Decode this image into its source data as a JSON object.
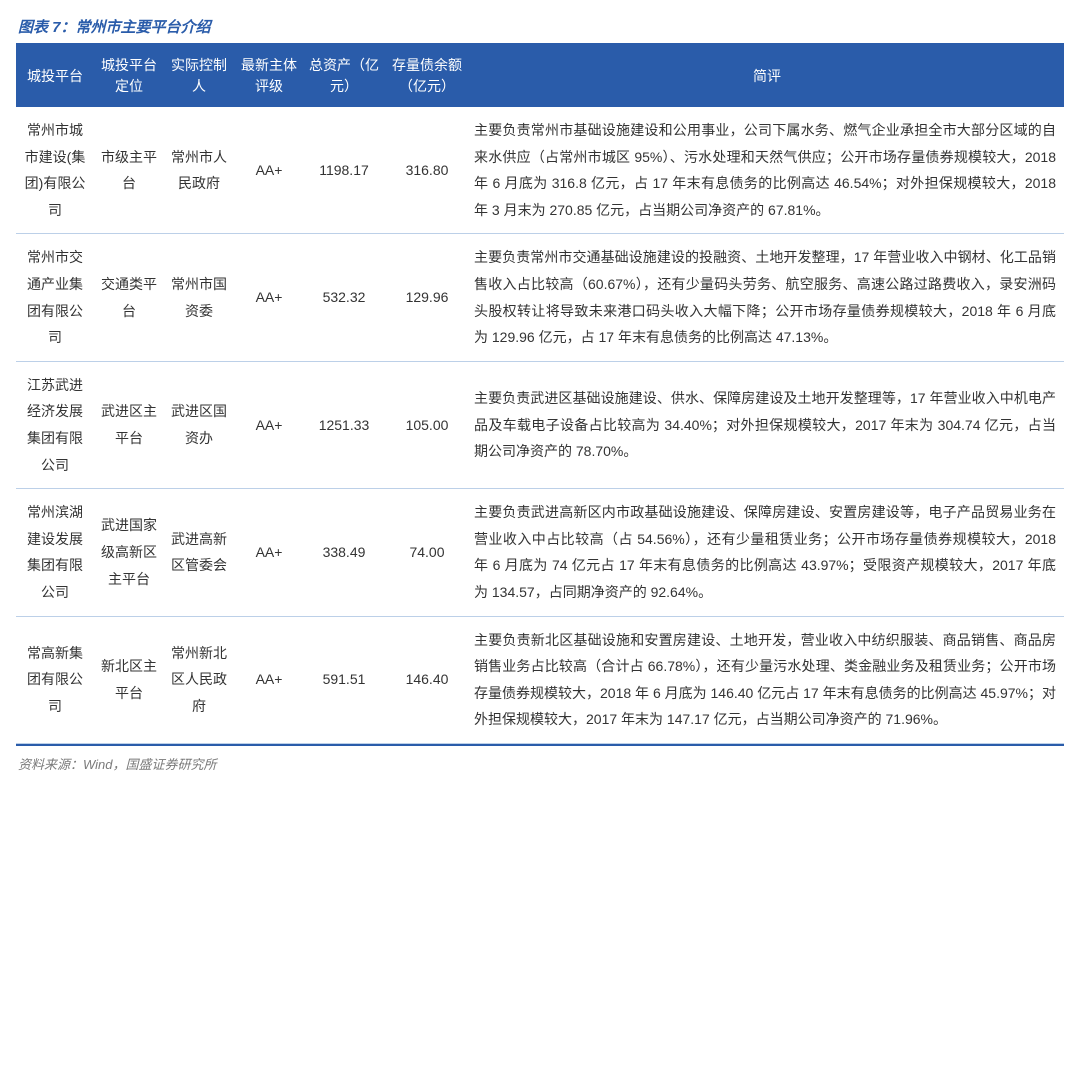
{
  "title_prefix": "图表 7：",
  "title_text": "常州市主要平台介绍",
  "source_label": "资料来源：",
  "source_text": "Wind，国盛证券研究所",
  "colors": {
    "header_bg": "#2a5caa",
    "header_text": "#ffffff",
    "row_border": "#bcd0e8",
    "title_color": "#2a5caa",
    "body_text": "#333333",
    "source_text": "#7a7a7a",
    "background": "#ffffff"
  },
  "columns": [
    "城投平台",
    "城投平台定位",
    "实际控制人",
    "最新主体评级",
    "总资产（亿元）",
    "存量债余额（亿元）",
    "简评"
  ],
  "rows": [
    {
      "platform": "常州市城市建设(集团)有限公司",
      "positioning": "市级主平台",
      "controller": "常州市人民政府",
      "rating": "AA+",
      "total_assets": "1198.17",
      "bond_balance": "316.80",
      "desc": "主要负责常州市基础设施建设和公用事业，公司下属水务、燃气企业承担全市大部分区域的自来水供应（占常州市城区 95%）、污水处理和天然气供应；公开市场存量债券规模较大，2018 年 6 月底为 316.8 亿元，占 17 年末有息债务的比例高达 46.54%；对外担保规模较大，2018 年 3 月末为 270.85 亿元，占当期公司净资产的 67.81%。"
    },
    {
      "platform": "常州市交通产业集团有限公司",
      "positioning": "交通类平台",
      "controller": "常州市国资委",
      "rating": "AA+",
      "total_assets": "532.32",
      "bond_balance": "129.96",
      "desc": "主要负责常州市交通基础设施建设的投融资、土地开发整理，17 年营业收入中钢材、化工品销售收入占比较高（60.67%），还有少量码头劳务、航空服务、高速公路过路费收入，录安洲码头股权转让将导致未来港口码头收入大幅下降；公开市场存量债券规模较大，2018 年 6 月底为 129.96 亿元，占 17 年末有息债务的比例高达 47.13%。"
    },
    {
      "platform": "江苏武进经济发展集团有限公司",
      "positioning": "武进区主平台",
      "controller": "武进区国资办",
      "rating": "AA+",
      "total_assets": "1251.33",
      "bond_balance": "105.00",
      "desc": "主要负责武进区基础设施建设、供水、保障房建设及土地开发整理等，17 年营业收入中机电产品及车载电子设备占比较高为 34.40%；对外担保规模较大，2017 年末为 304.74 亿元，占当期公司净资产的 78.70%。"
    },
    {
      "platform": "常州滨湖建设发展集团有限公司",
      "positioning": "武进国家级高新区主平台",
      "controller": "武进高新区管委会",
      "rating": "AA+",
      "total_assets": "338.49",
      "bond_balance": "74.00",
      "desc": "主要负责武进高新区内市政基础设施建设、保障房建设、安置房建设等，电子产品贸易业务在营业收入中占比较高（占 54.56%），还有少量租赁业务；公开市场存量债券规模较大，2018 年 6 月底为 74 亿元占 17 年末有息债务的比例高达 43.97%；受限资产规模较大，2017 年底为 134.57，占同期净资产的 92.64%。"
    },
    {
      "platform": "常高新集团有限公司",
      "positioning": "新北区主平台",
      "controller": "常州新北区人民政府",
      "rating": "AA+",
      "total_assets": "591.51",
      "bond_balance": "146.40",
      "desc": "主要负责新北区基础设施和安置房建设、土地开发，营业收入中纺织服装、商品销售、商品房销售业务占比较高（合计占 66.78%），还有少量污水处理、类金融业务及租赁业务；公开市场存量债券规模较大，2018 年 6 月底为 146.40 亿元占 17 年末有息债务的比例高达 45.97%；对外担保规模较大，2017 年末为 147.17 亿元，占当期公司净资产的 71.96%。"
    }
  ]
}
